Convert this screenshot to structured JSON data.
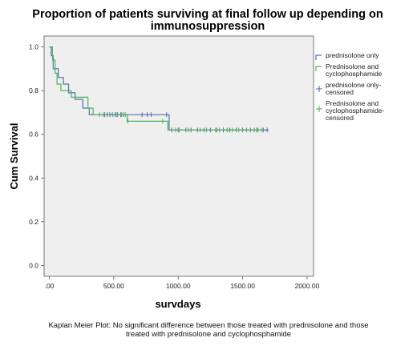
{
  "chart_data": {
    "type": "line",
    "title_lines": [
      "Proportion of patients surviving at final follow up depending on",
      "immunosuppression"
    ],
    "xlabel": "survdays",
    "ylabel": "Cum Survival",
    "xlim": [
      -40,
      2050
    ],
    "ylim": [
      -0.05,
      1.05
    ],
    "xticks": [
      0,
      500,
      1000,
      1500,
      2000
    ],
    "xtick_labels": [
      ".00",
      "500.00",
      "1000.00",
      "1500.00",
      "2000.00"
    ],
    "yticks": [
      0.0,
      0.2,
      0.4,
      0.6,
      0.8,
      1.0
    ],
    "ytick_labels": [
      "0.0",
      "0.2",
      "0.4",
      "0.6",
      "0.8",
      "1.0"
    ],
    "grid": false,
    "legend_position": "right",
    "series": [
      {
        "name": "prednisolone only",
        "color": "#5a6fb0",
        "steps": [
          [
            0,
            1.0
          ],
          [
            15,
            0.96
          ],
          [
            30,
            0.9
          ],
          [
            55,
            0.9
          ],
          [
            70,
            0.86
          ],
          [
            110,
            0.83
          ],
          [
            150,
            0.79
          ],
          [
            200,
            0.76
          ],
          [
            260,
            0.72
          ],
          [
            310,
            0.69
          ],
          [
            920,
            0.69
          ],
          [
            930,
            0.62
          ],
          [
            1700,
            0.62
          ]
        ],
        "censored_x": [
          430,
          450,
          470,
          490,
          510,
          530,
          555,
          575,
          720,
          760,
          790,
          910,
          950,
          1000,
          1060,
          1100,
          1150,
          1200,
          1250,
          1300,
          1350,
          1400,
          1450,
          1500,
          1560,
          1610,
          1660,
          1690
        ]
      },
      {
        "name": "Prednisolone and cyclophosphamide",
        "color": "#4cb35a",
        "steps": [
          [
            0,
            1.0
          ],
          [
            25,
            0.94
          ],
          [
            45,
            0.88
          ],
          [
            60,
            0.83
          ],
          [
            90,
            0.8
          ],
          [
            170,
            0.77
          ],
          [
            300,
            0.72
          ],
          [
            340,
            0.69
          ],
          [
            600,
            0.69
          ],
          [
            605,
            0.66
          ],
          [
            910,
            0.66
          ],
          [
            920,
            0.62
          ],
          [
            1660,
            0.62
          ]
        ],
        "censored_x": [
          390,
          420,
          520,
          560,
          590,
          610,
          880,
          980,
          1010,
          1080,
          1170,
          1220,
          1290,
          1320,
          1380,
          1420,
          1470,
          1530,
          1590,
          1620,
          1650
        ]
      }
    ],
    "legend_entries": [
      {
        "lines": [
          "prednisolone only"
        ],
        "color": "#5a6fb0",
        "kind": "line"
      },
      {
        "lines": [
          "Prednisolone and",
          "cyclophosphamide"
        ],
        "color": "#4cb35a",
        "kind": "line"
      },
      {
        "lines": [
          "prednisolone only-",
          "censored"
        ],
        "color": "#5a6fb0",
        "kind": "cross"
      },
      {
        "lines": [
          "Prednisolone and",
          "cyclophosphamide-",
          "censored"
        ],
        "color": "#4cb35a",
        "kind": "cross"
      }
    ],
    "caption_lines": [
      "Kaplan Meier Plot: No significant difference between those treated with prednisolone and those",
      "treated with prednisolone and cyclophosphamide"
    ]
  }
}
